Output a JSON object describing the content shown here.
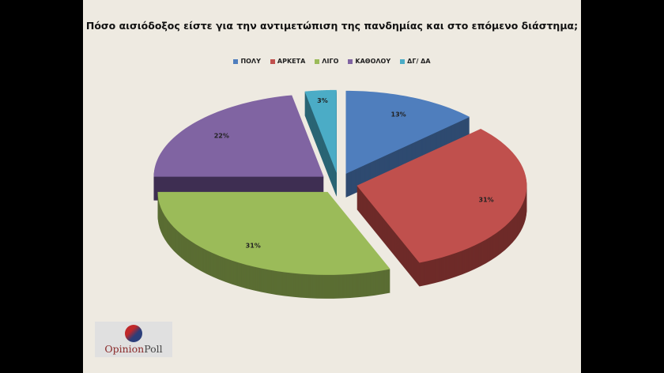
{
  "chart_data": {
    "type": "pie",
    "title": "Πόσο αισιόδοξος είστε για την αντιμετώπιση της πανδημίας και στο επόμενο διάστημα;",
    "categories": [
      "ΠΟΛΥ",
      "ΑΡΚΕΤΑ",
      "ΛΙΓΟ",
      "ΚΑΘΟΛΟΥ",
      "ΔΓ/ ΔΑ"
    ],
    "values": [
      13,
      31,
      31,
      22,
      3
    ],
    "labels": [
      "13%",
      "31%",
      "31%",
      "22%",
      "3%"
    ],
    "colors": [
      "#4f7ebd",
      "#c0504d",
      "#9bbb59",
      "#8064a2",
      "#4bacc6"
    ],
    "side_colors": [
      "#2e4a70",
      "#6e2b29",
      "#5a6d33",
      "#3e2f52",
      "#2a6474"
    ],
    "legend_position": "top",
    "style": "3d-exploded"
  },
  "logo": {
    "text_a": "Opinion",
    "text_b": "Poll"
  }
}
